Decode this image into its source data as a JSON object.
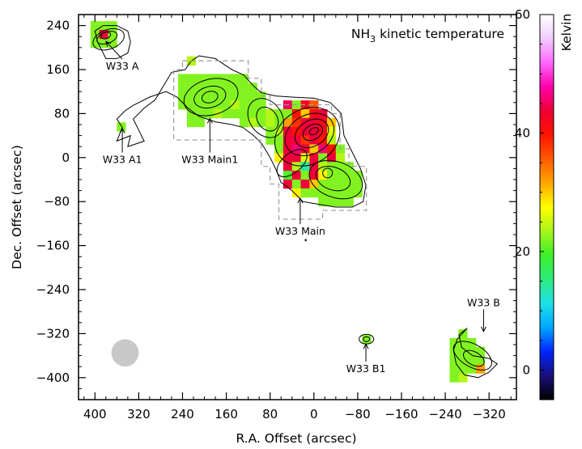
{
  "chart_data": {
    "type": "heatmap",
    "title": "NH3 kinetic temperature",
    "title_parts": {
      "pre": "NH",
      "sub": "3",
      "post": " kinetic temperature"
    },
    "xlabel": "R.A. Offset (arcsec)",
    "ylabel": "Dec. Offset (arcsec)",
    "xlim": [
      430,
      -370
    ],
    "ylim": [
      -440,
      260
    ],
    "x_ticks": [
      400,
      320,
      240,
      160,
      80,
      0,
      -80,
      -160,
      -240,
      -320
    ],
    "x_tick_labels": [
      "400",
      "320",
      "240",
      "160",
      "80",
      "0",
      "−80",
      "−160",
      "−240",
      "−320"
    ],
    "y_ticks": [
      240,
      160,
      80,
      0,
      -80,
      -160,
      -240,
      -320,
      -400
    ],
    "y_tick_labels": [
      "240",
      "160",
      "80",
      "0",
      "−80",
      "−160",
      "−240",
      "−320",
      "−400"
    ],
    "colorbar": {
      "label": "Kelvin",
      "range": [
        -5,
        60
      ],
      "ticks": [
        0,
        20,
        40,
        60
      ],
      "tick_labels": [
        "0",
        "20",
        "40",
        "60"
      ],
      "colors": [
        "#000000",
        "#1a0f7a",
        "#0024ff",
        "#00a8ff",
        "#1de0e8",
        "#2eea7c",
        "#3cf02a",
        "#a8f51a",
        "#ffff00",
        "#ffa600",
        "#ff5a00",
        "#ff1400",
        "#ee0033",
        "#ff00aa",
        "#ff66ff",
        "#f2ccff",
        "#ffffff"
      ]
    },
    "regions": [
      {
        "name": "W33 A",
        "x": 380,
        "y": 220,
        "label_x": 350,
        "label_y": 160
      },
      {
        "name": "W33 A1",
        "x": 350,
        "y": 62,
        "label_x": 350,
        "label_y": -10
      },
      {
        "name": "W33 Main1",
        "x": 190,
        "y": 80,
        "label_x": 190,
        "label_y": -10
      },
      {
        "name": "W33 Main",
        "x": 25,
        "y": -65,
        "label_x": 25,
        "label_y": -140
      },
      {
        "name": "W33 B1",
        "x": -95,
        "y": -330,
        "label_x": -95,
        "label_y": -390
      },
      {
        "name": "W33 B",
        "x": -310,
        "y": -325,
        "label_x": -310,
        "label_y": -270
      }
    ],
    "beam": {
      "x": 345,
      "y": -355,
      "diameter_arcsec": 50
    },
    "temperature_map": {
      "pixel_size_arcsec": 16,
      "pixels": [
        [
          400,
          240,
          22
        ],
        [
          384,
          240,
          22
        ],
        [
          368,
          240,
          22
        ],
        [
          400,
          224,
          22
        ],
        [
          384,
          224,
          44
        ],
        [
          368,
          224,
          22
        ],
        [
          400,
          208,
          22
        ],
        [
          384,
          208,
          22
        ],
        [
          368,
          208,
          22
        ],
        [
          352,
          56,
          22
        ],
        [
          224,
          176,
          24
        ],
        [
          240,
          144,
          22
        ],
        [
          224,
          144,
          22
        ],
        [
          208,
          144,
          22
        ],
        [
          192,
          144,
          22
        ],
        [
          176,
          144,
          22
        ],
        [
          160,
          144,
          22
        ],
        [
          144,
          144,
          22
        ],
        [
          128,
          144,
          22
        ],
        [
          240,
          128,
          22
        ],
        [
          224,
          128,
          22
        ],
        [
          208,
          128,
          22
        ],
        [
          192,
          128,
          22
        ],
        [
          176,
          128,
          22
        ],
        [
          160,
          128,
          22
        ],
        [
          144,
          128,
          22
        ],
        [
          128,
          128,
          22
        ],
        [
          112,
          128,
          22
        ],
        [
          240,
          112,
          22
        ],
        [
          224,
          112,
          22
        ],
        [
          208,
          112,
          22
        ],
        [
          192,
          112,
          22
        ],
        [
          176,
          112,
          22
        ],
        [
          160,
          112,
          22
        ],
        [
          144,
          112,
          22
        ],
        [
          128,
          112,
          22
        ],
        [
          112,
          112,
          22
        ],
        [
          96,
          112,
          22
        ],
        [
          240,
          96,
          22
        ],
        [
          224,
          96,
          22
        ],
        [
          208,
          96,
          22
        ],
        [
          192,
          96,
          22
        ],
        [
          176,
          96,
          22
        ],
        [
          160,
          96,
          22
        ],
        [
          144,
          96,
          24
        ],
        [
          128,
          96,
          22
        ],
        [
          112,
          96,
          22
        ],
        [
          96,
          96,
          22
        ],
        [
          224,
          80,
          22
        ],
        [
          208,
          80,
          22
        ],
        [
          192,
          80,
          22
        ],
        [
          176,
          80,
          24
        ],
        [
          160,
          80,
          22
        ],
        [
          144,
          80,
          22
        ],
        [
          128,
          80,
          22
        ],
        [
          112,
          80,
          22
        ],
        [
          96,
          80,
          22
        ],
        [
          80,
          80,
          24
        ],
        [
          224,
          64,
          22
        ],
        [
          208,
          64,
          22
        ],
        [
          128,
          64,
          22
        ],
        [
          112,
          64,
          24
        ],
        [
          96,
          64,
          22
        ],
        [
          80,
          64,
          24
        ],
        [
          48,
          96,
          45
        ],
        [
          32,
          96,
          22
        ],
        [
          16,
          96,
          42
        ],
        [
          0,
          96,
          36
        ],
        [
          80,
          80,
          24
        ],
        [
          64,
          80,
          22
        ],
        [
          48,
          80,
          22
        ],
        [
          32,
          80,
          40
        ],
        [
          16,
          80,
          30
        ],
        [
          0,
          80,
          42
        ],
        [
          -16,
          80,
          44
        ],
        [
          80,
          64,
          24
        ],
        [
          64,
          64,
          22
        ],
        [
          48,
          64,
          32
        ],
        [
          32,
          64,
          38
        ],
        [
          16,
          64,
          44
        ],
        [
          0,
          64,
          44
        ],
        [
          -16,
          64,
          42
        ],
        [
          -32,
          64,
          30
        ],
        [
          80,
          48,
          22
        ],
        [
          64,
          48,
          24
        ],
        [
          48,
          48,
          44
        ],
        [
          32,
          48,
          40
        ],
        [
          16,
          48,
          44
        ],
        [
          0,
          48,
          44
        ],
        [
          -16,
          48,
          42
        ],
        [
          -32,
          48,
          26
        ],
        [
          80,
          32,
          22
        ],
        [
          64,
          32,
          22
        ],
        [
          48,
          32,
          44
        ],
        [
          32,
          32,
          44
        ],
        [
          16,
          32,
          38
        ],
        [
          0,
          32,
          44
        ],
        [
          -16,
          32,
          40
        ],
        [
          -32,
          32,
          24
        ],
        [
          64,
          16,
          22
        ],
        [
          48,
          16,
          44
        ],
        [
          32,
          16,
          46
        ],
        [
          16,
          16,
          44
        ],
        [
          0,
          16,
          30
        ],
        [
          -16,
          16,
          46
        ],
        [
          -32,
          16,
          40
        ],
        [
          -48,
          16,
          22
        ],
        [
          64,
          0,
          28
        ],
        [
          48,
          0,
          44
        ],
        [
          32,
          0,
          44
        ],
        [
          16,
          0,
          26
        ],
        [
          0,
          0,
          44
        ],
        [
          -16,
          0,
          22
        ],
        [
          -32,
          0,
          44
        ],
        [
          -48,
          0,
          24
        ],
        [
          48,
          -16,
          44
        ],
        [
          32,
          -16,
          24
        ],
        [
          16,
          -16,
          14
        ],
        [
          0,
          -16,
          44
        ],
        [
          -16,
          -16,
          24
        ],
        [
          -32,
          -16,
          22
        ],
        [
          -48,
          -16,
          22
        ],
        [
          -64,
          -16,
          22
        ],
        [
          48,
          -32,
          20
        ],
        [
          32,
          -32,
          44
        ],
        [
          16,
          -32,
          22
        ],
        [
          0,
          -32,
          44
        ],
        [
          -16,
          -32,
          28
        ],
        [
          -32,
          -32,
          22
        ],
        [
          -48,
          -32,
          22
        ],
        [
          -64,
          -32,
          22
        ],
        [
          -80,
          -32,
          22
        ],
        [
          48,
          -48,
          44
        ],
        [
          32,
          -48,
          22
        ],
        [
          16,
          -48,
          44
        ],
        [
          0,
          -48,
          30
        ],
        [
          -16,
          -48,
          22
        ],
        [
          -32,
          -48,
          22
        ],
        [
          -48,
          -48,
          22
        ],
        [
          -64,
          -48,
          22
        ],
        [
          -80,
          -48,
          22
        ],
        [
          32,
          -64,
          28
        ],
        [
          16,
          -64,
          22
        ],
        [
          0,
          -64,
          22
        ],
        [
          -16,
          -64,
          22
        ],
        [
          -32,
          -64,
          22
        ],
        [
          -48,
          -64,
          22
        ],
        [
          -64,
          -64,
          22
        ],
        [
          -80,
          -64,
          22
        ],
        [
          -16,
          -80,
          22
        ],
        [
          -32,
          -80,
          22
        ],
        [
          -48,
          -80,
          22
        ],
        [
          -64,
          -80,
          22
        ],
        [
          -96,
          -330,
          22
        ],
        [
          -272,
          -320,
          22
        ],
        [
          -256,
          -336,
          22
        ],
        [
          -272,
          -336,
          22
        ],
        [
          -288,
          -336,
          22
        ],
        [
          -256,
          -352,
          22
        ],
        [
          -272,
          -352,
          22
        ],
        [
          -288,
          -352,
          22
        ],
        [
          -304,
          -352,
          22
        ],
        [
          -256,
          -368,
          22
        ],
        [
          -272,
          -368,
          22
        ],
        [
          -288,
          -368,
          22
        ],
        [
          -304,
          -368,
          22
        ],
        [
          -256,
          -384,
          22
        ],
        [
          -272,
          -384,
          22
        ],
        [
          -288,
          -384,
          22
        ],
        [
          -304,
          -384,
          32
        ],
        [
          -256,
          -400,
          22
        ],
        [
          -272,
          -400,
          24
        ]
      ]
    }
  }
}
